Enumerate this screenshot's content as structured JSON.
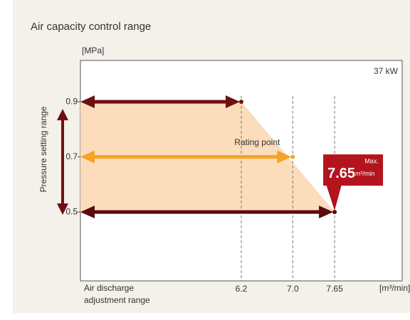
{
  "chart_data": {
    "type": "range",
    "title": "Air capacity control range",
    "y_unit": "[MPa]",
    "x_unit": "[m³/min]",
    "x_label": [
      "Air discharge",
      "adjustment range"
    ],
    "y_label": "Pressure setting range",
    "model": "37 kW",
    "x": [
      6.2,
      7,
      7.65
    ],
    "values": [
      0.9,
      0.7,
      0.5
    ],
    "colors": [
      "#6e1010",
      "#f5a324",
      "#5a0c12"
    ],
    "area_color": "#fbdcbb",
    "point_label": "Rating point",
    "max": {
      "label": "Max.",
      "value": 7.65,
      "unit": "m³/min"
    },
    "xlim": [
      3.7,
      8.7
    ],
    "ylim": [
      0.25,
      1.05
    ],
    "xticks": [
      6.2,
      {
        "value": 7,
        "label": "7.0"
      },
      7.65
    ],
    "yticks": [
      0.9,
      0.7,
      0.5
    ]
  }
}
